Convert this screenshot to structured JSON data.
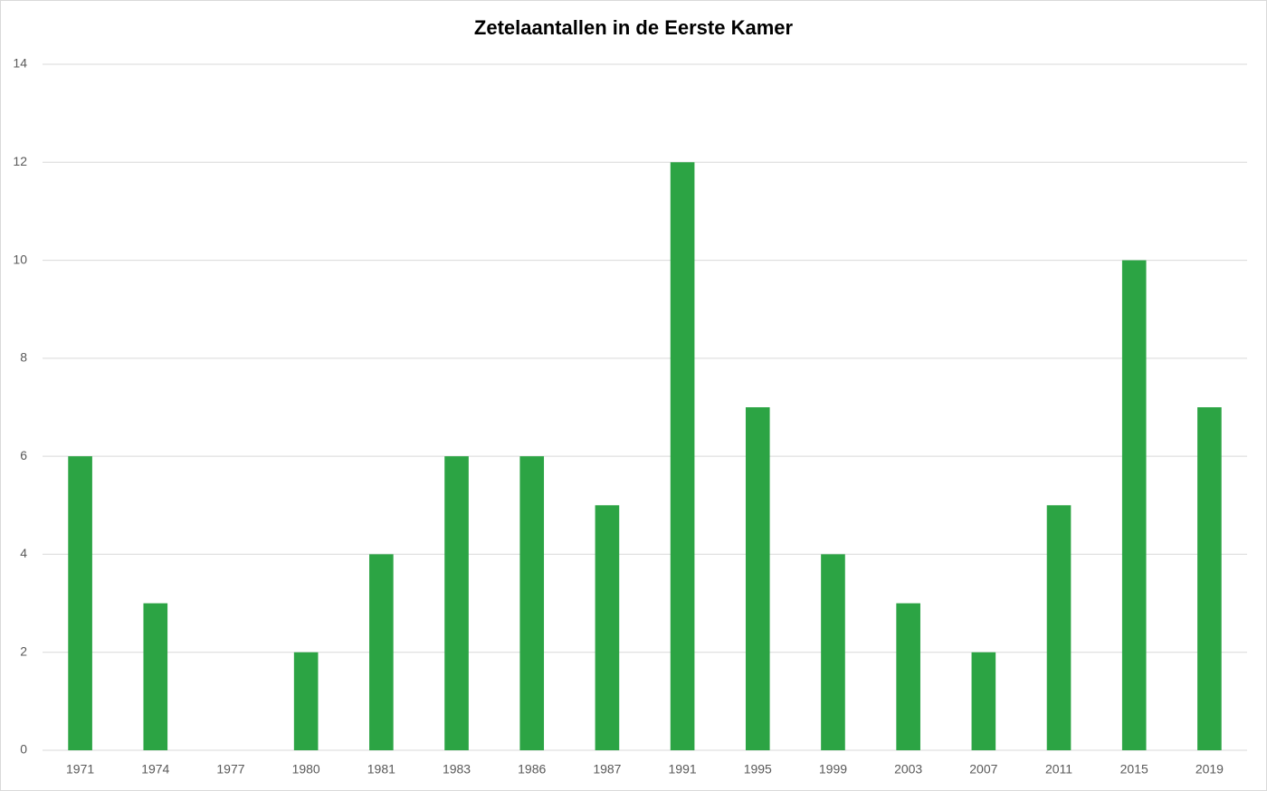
{
  "chart_data": {
    "type": "bar",
    "title": "Zetelaantallen in de Eerste Kamer",
    "categories": [
      "1971",
      "1974",
      "1977",
      "1980",
      "1981",
      "1983",
      "1986",
      "1987",
      "1991",
      "1995",
      "1999",
      "2003",
      "2007",
      "2011",
      "2015",
      "2019"
    ],
    "values": [
      6,
      3,
      0,
      2,
      4,
      6,
      6,
      5,
      12,
      7,
      4,
      3,
      2,
      5,
      10,
      7
    ],
    "color": "#2ca444",
    "ylim": [
      0,
      14
    ],
    "yticks": [
      0,
      2,
      4,
      6,
      8,
      10,
      12,
      14
    ],
    "grid": true
  }
}
